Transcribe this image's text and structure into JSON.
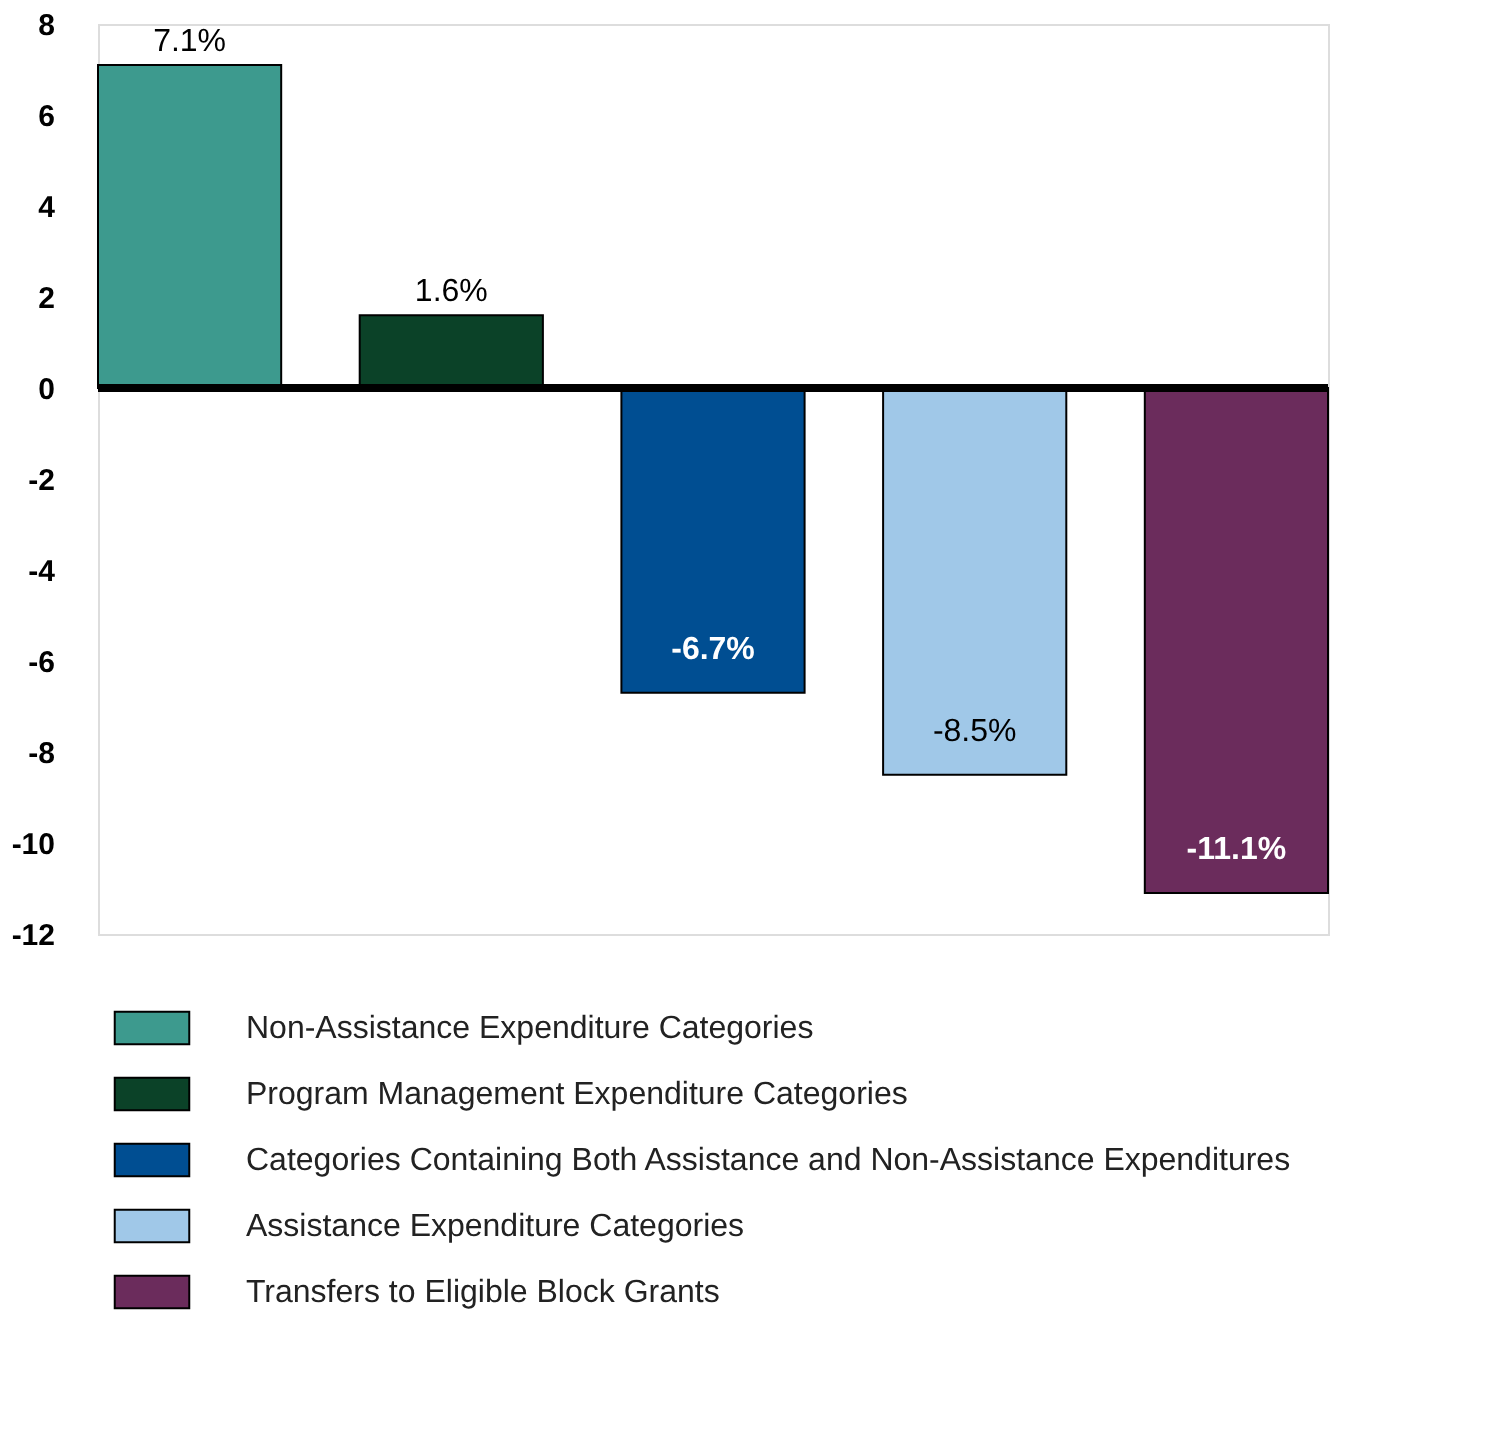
{
  "chart_data": {
    "type": "bar",
    "categories": [
      null,
      null,
      null,
      null,
      null
    ],
    "series": [
      {
        "name": "Non-Assistance Expenditure Categories",
        "color": "#3d9a8e",
        "values": [
          7.1,
          null,
          null,
          null,
          null
        ],
        "value_labels": [
          "7.1%",
          null,
          null,
          null,
          null
        ]
      },
      {
        "name": "Program Management Expenditure Categories",
        "color": "#0b4228",
        "values": [
          null,
          1.6,
          null,
          null,
          null
        ],
        "value_labels": [
          null,
          "1.6%",
          null,
          null,
          null
        ]
      },
      {
        "name": "Categories Containing Both Assistance and Non-Assistance Expenditures",
        "color": "#004e92",
        "values": [
          null,
          null,
          -6.7,
          null,
          null
        ],
        "value_labels": [
          null,
          null,
          "-6.7%",
          null,
          null
        ]
      },
      {
        "name": "Assistance Expenditure Categories",
        "color": "#a0c8e8",
        "values": [
          null,
          null,
          null,
          -8.5,
          null
        ],
        "value_labels": [
          null,
          null,
          null,
          "-8.5%",
          null
        ]
      },
      {
        "name": "Transfers to Eligible Block Grants",
        "color": "#6b2c5c",
        "values": [
          null,
          null,
          null,
          null,
          -11.1
        ],
        "value_labels": [
          null,
          null,
          null,
          null,
          "-11.1%"
        ]
      }
    ],
    "ylim": [
      -12,
      8
    ],
    "yticks": [
      -12,
      -10,
      -8,
      -6,
      -4,
      -2,
      0,
      2,
      4,
      6,
      8
    ],
    "ref_lines": [
      {
        "axis": "y",
        "value": 0
      }
    ],
    "grid": false,
    "legend": "bottom",
    "tick_labels": "y"
  }
}
